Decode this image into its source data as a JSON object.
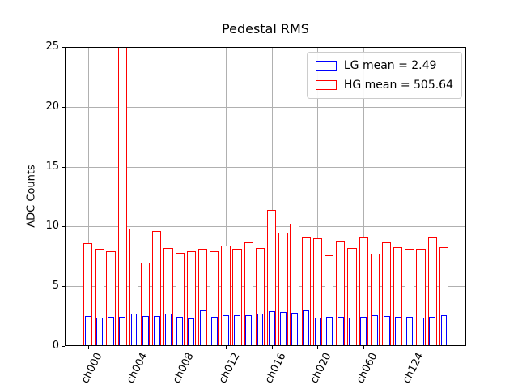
{
  "title": "Pedestal RMS",
  "chart_data": {
    "type": "bar",
    "title": "Pedestal RMS",
    "xlabel": "",
    "ylabel": "ADC Counts",
    "ylim": [
      0,
      25
    ],
    "yticks": [
      0,
      5,
      10,
      15,
      20,
      25
    ],
    "grid": true,
    "legend_position": "upper right",
    "n_bars": 32,
    "xticks": [
      {
        "bar_index": 0,
        "label": "ch000"
      },
      {
        "bar_index": 4,
        "label": "ch004"
      },
      {
        "bar_index": 8,
        "label": "ch008"
      },
      {
        "bar_index": 12,
        "label": "ch012"
      },
      {
        "bar_index": 16,
        "label": "ch016"
      },
      {
        "bar_index": 20,
        "label": "ch020"
      },
      {
        "bar_index": 24,
        "label": "ch060"
      },
      {
        "bar_index": 28,
        "label": "ch124"
      },
      {
        "bar_index": 32,
        "label": ""
      }
    ],
    "series": [
      {
        "name": "HG mean = 505.64",
        "color": "#ff0000",
        "fill": "#ffffff",
        "values": [
          8.6,
          8.1,
          7.9,
          25.0,
          9.8,
          7.0,
          9.6,
          8.2,
          7.8,
          7.9,
          8.1,
          7.9,
          8.4,
          8.1,
          8.7,
          8.2,
          11.4,
          9.5,
          10.2,
          9.1,
          9.0,
          7.6,
          8.8,
          8.2,
          9.1,
          7.7,
          8.7,
          8.3,
          8.1,
          8.1,
          9.1,
          8.3
        ]
      },
      {
        "name": "LG mean = 2.49",
        "color": "#0000ff",
        "fill": "none",
        "values": [
          2.5,
          2.4,
          2.45,
          2.45,
          2.7,
          2.5,
          2.5,
          2.7,
          2.45,
          2.3,
          2.95,
          2.45,
          2.6,
          2.55,
          2.6,
          2.7,
          2.9,
          2.85,
          2.8,
          3.0,
          2.4,
          2.45,
          2.45,
          2.35,
          2.45,
          2.55,
          2.5,
          2.45,
          2.45,
          2.35,
          2.45,
          2.55
        ]
      }
    ],
    "clipped": [
      {
        "series": "HG mean = 505.64",
        "bar_index": 3,
        "note": "bar extends above y-axis limit of 25"
      }
    ]
  },
  "legend": {
    "items": [
      {
        "label": "LG mean = 2.49",
        "color": "#0000ff"
      },
      {
        "label": "HG mean = 505.64",
        "color": "#ff0000"
      }
    ]
  }
}
